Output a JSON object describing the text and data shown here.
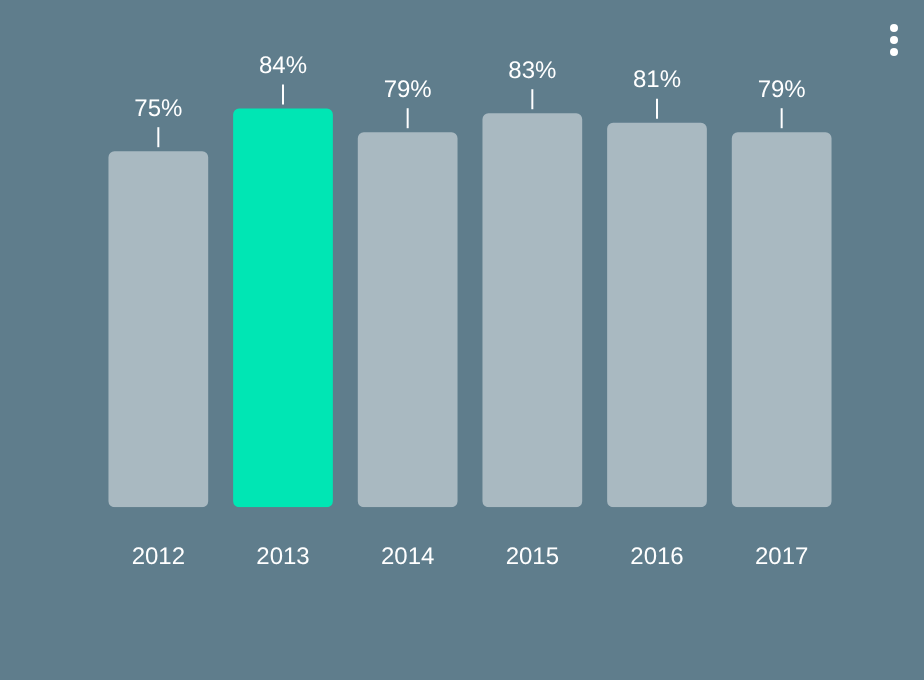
{
  "chart_data": {
    "type": "bar",
    "categories": [
      "2012",
      "2013",
      "2014",
      "2015",
      "2016",
      "2017"
    ],
    "values": [
      75,
      84,
      79,
      83,
      81,
      79
    ],
    "colors": [
      "#a9b9c1",
      "#00e6b4",
      "#a9b9c1",
      "#a9b9c1",
      "#a9b9c1",
      "#a9b9c1"
    ],
    "value_labels": [
      "75%",
      "84%",
      "79%",
      "83%",
      "81%",
      "79%"
    ],
    "relative": false,
    "grid": false,
    "legend": false
  }
}
